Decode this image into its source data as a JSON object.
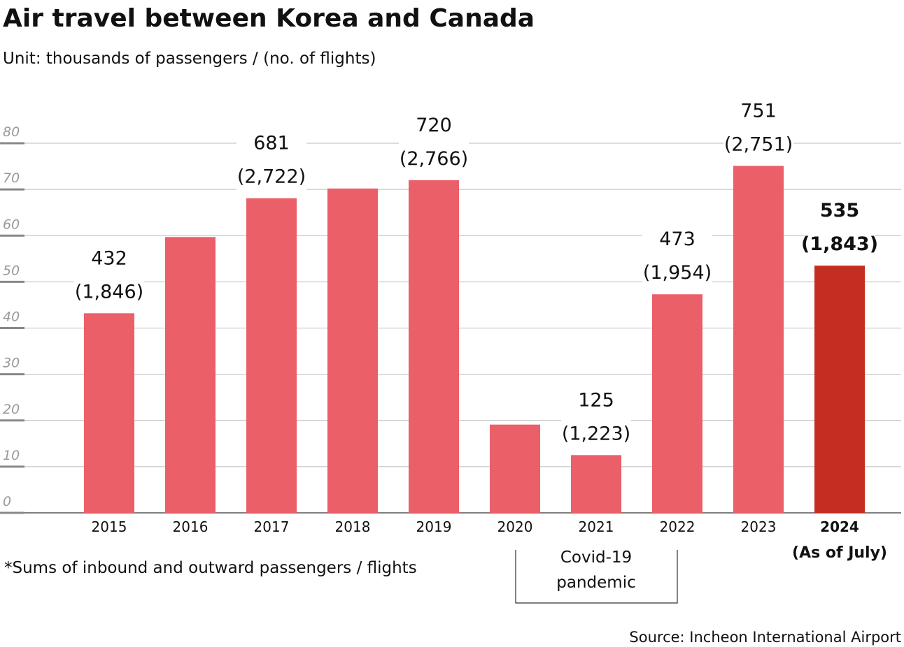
{
  "chart_data": {
    "type": "bar",
    "title": "Air travel between Korea and Canada",
    "subtitle": "Unit: thousands of passengers / (no. of flights)",
    "categories": [
      "2015",
      "2016",
      "2017",
      "2018",
      "2019",
      "2020",
      "2021",
      "2022",
      "2023",
      "2024"
    ],
    "category_note": "(As of July)",
    "series": [
      {
        "colors": [
          "#eb5f68",
          "#eb5f68",
          "#eb5f68",
          "#eb5f68",
          "#eb5f68",
          "#eb5f68",
          "#eb5f68",
          "#eb5f68",
          "#eb5f68",
          "#c42e20"
        ],
        "values": [
          43.2,
          59.7,
          68.1,
          70.2,
          72.0,
          19.1,
          12.5,
          47.3,
          75.1,
          53.5
        ],
        "value_labels": [
          "432",
          null,
          "681",
          null,
          "720",
          null,
          "125",
          "473",
          "751",
          "535"
        ],
        "flight_labels": [
          "(1,846)",
          null,
          "(2,722)",
          null,
          "(2,766)",
          null,
          "(1,223)",
          "(1,954)",
          "(2,751)",
          "(1,843)"
        ]
      }
    ],
    "ylim": [
      0,
      80
    ],
    "yticks": [
      0,
      10,
      20,
      30,
      40,
      50,
      60,
      70,
      80
    ],
    "grid": true,
    "annotation": "Covid-19\npandemic",
    "footnote": "*Sums of inbound and outward passengers / flights",
    "source": "Source: Incheon International Airport"
  }
}
